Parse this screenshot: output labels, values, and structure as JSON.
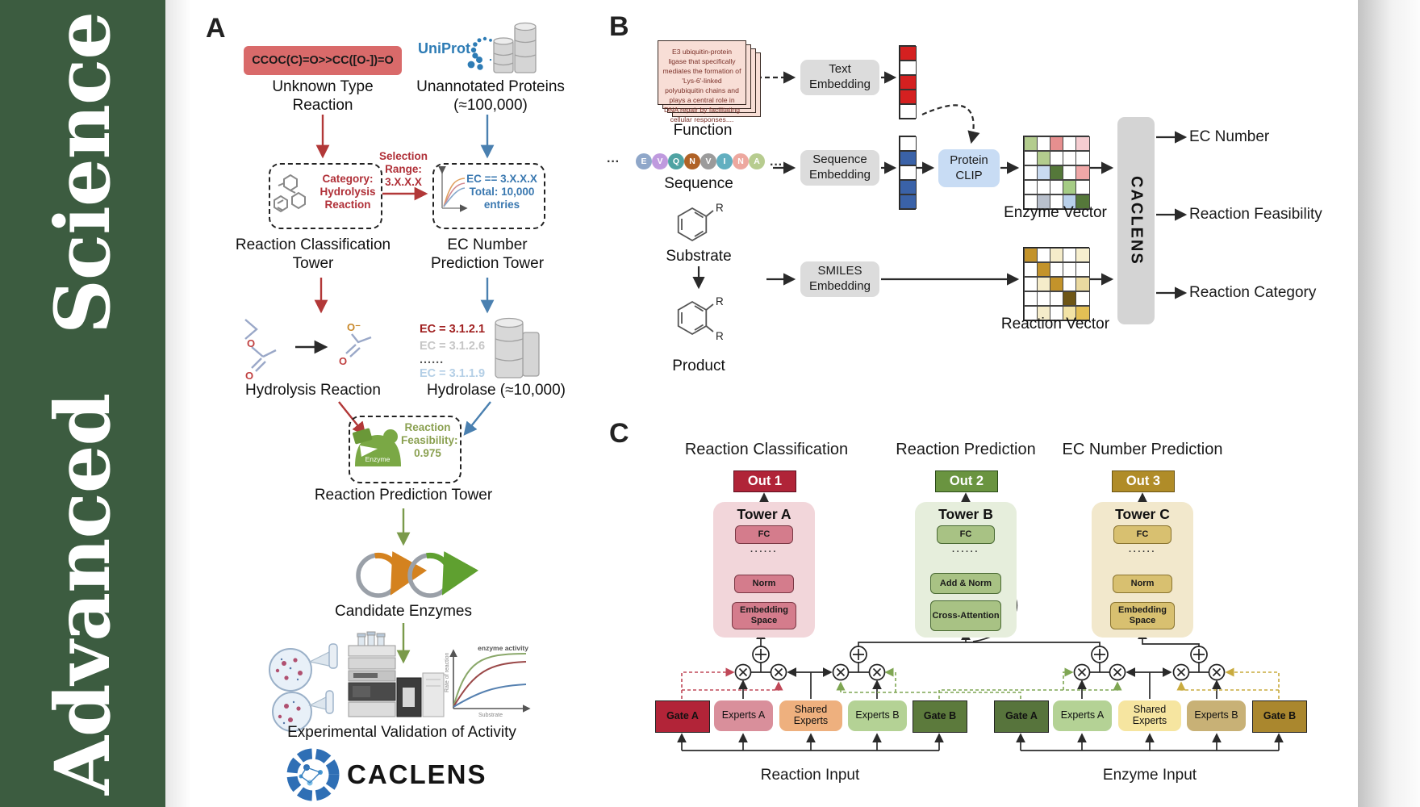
{
  "journal": {
    "name": "Advanced Science"
  },
  "colors": {
    "sidebar_green": "#3c5c40",
    "arrow_red": "#b23838",
    "arrow_blue": "#4a80b0",
    "arrow_olive": "#7a9a4a",
    "smiles_box": "#d96a6a",
    "uniprot_blue": "#2e7cb5",
    "clip_blue": "#c8dcf4",
    "embedding_gray": "#dcdcdc",
    "caclens_bar_gray": "#d4d4d4"
  },
  "panelA": {
    "label": "A",
    "smiles": "CCOC(C)=O>>CC([O-])=O",
    "unknown_reaction": "Unknown Type Reaction",
    "uniprot": "UniProt",
    "unannotated": "Unannotated Proteins (≈100,000)",
    "selection_range": "Selection Range: 3.X.X.X",
    "category_box": "Category: Hydrolysis Reaction",
    "ec_box": "EC == 3.X.X.X Total: 10,000 entries",
    "tower_classification": "Reaction Classification Tower",
    "tower_ec": "EC Number Prediction Tower",
    "hydrolysis": "Hydrolysis Reaction",
    "hydrolase": "Hydrolase (≈10,000)",
    "ec_list": [
      {
        "text": "EC = 3.1.2.1",
        "color": "#a02020"
      },
      {
        "text": "EC = 3.1.2.6",
        "color": "#c6c6c6"
      },
      {
        "text": "......",
        "color": "#555555"
      },
      {
        "text": "EC = 3.1.1.9",
        "color": "#b4cfe6"
      }
    ],
    "enzyme": "Enzyme",
    "feasibility": "Reaction Feasibility: 0.975",
    "tower_prediction": "Reaction Prediction Tower",
    "candidates": "Candidate Enzymes",
    "activity_chart": {
      "curve_label": "enzyme activity",
      "ylabel": "Rate of reaction",
      "xlabel": "Substrate"
    },
    "validation": "Experimental Validation of Activity",
    "logo": "CACLENS",
    "atom_o": "O",
    "atom_o_minus": "O⁻"
  },
  "panelB": {
    "label": "B",
    "function_text": "E3 ubiquitin-protein ligase that specifically mediates the formation of 'Lys-6'-linked polyubiquitin chains and plays a central role in DNA repair by facilitating cellular responses....",
    "function": "Function",
    "ellipsis": "···",
    "residues": [
      {
        "l": "E",
        "c": "#8fa7c9"
      },
      {
        "l": "V",
        "c": "#bf9ade"
      },
      {
        "l": "Q",
        "c": "#4fa3a3"
      },
      {
        "l": "N",
        "c": "#b06226"
      },
      {
        "l": "V",
        "c": "#9b9b9b"
      },
      {
        "l": "I",
        "c": "#62afc0"
      },
      {
        "l": "N",
        "c": "#eda89f"
      },
      {
        "l": "A",
        "c": "#b7cc8f"
      }
    ],
    "sequence": "Sequence",
    "substrate": "Substrate",
    "product": "Product",
    "r_group": "R",
    "text_embedding": "Text Embedding",
    "sequence_embedding": "Sequence Embedding",
    "smiles_embedding": "SMILES Embedding",
    "protein_clip": "Protein CLIP",
    "enzyme_vector": "Enzyme Vector",
    "reaction_vector": "Reaction Vector",
    "caclens": "CACLENS",
    "outputs": [
      "EC Number",
      "Reaction Feasibility",
      "Reaction Category"
    ],
    "text_vec": [
      "#d42020",
      "#ffffff",
      "#d42020",
      "#d42020",
      "#ffffff"
    ],
    "seq_vec": [
      "#ffffff",
      "#3a62a8",
      "#ffffff",
      "#3a62a8",
      "#3a62a8"
    ],
    "enzyme_grid": [
      "#b3cc8e",
      "#ffffff",
      "#e68f8f",
      "#ffffff",
      "#f5cdd1",
      "#ffffff",
      "#b3cc8e",
      "#ffffff",
      "#ffffff",
      "#ffffff",
      "#ffffff",
      "#c9daf0",
      "#55783a",
      "#ffffff",
      "#f0a8a8",
      "#ffffff",
      "#ffffff",
      "#ffffff",
      "#a5cc85",
      "#ffffff",
      "#ffffff",
      "#b9c0cc",
      "#ffffff",
      "#b9d0ea",
      "#55783a"
    ],
    "reaction_grid": [
      "#c3932b",
      "#ffffff",
      "#f5ecca",
      "#ffffff",
      "#f7efce",
      "#ffffff",
      "#c3932b",
      "#ffffff",
      "#ffffff",
      "#ffffff",
      "#ffffff",
      "#f5ecca",
      "#c3932b",
      "#ffffff",
      "#ead9a0",
      "#ffffff",
      "#ffffff",
      "#ffffff",
      "#6e5616",
      "#ffffff",
      "#ffffff",
      "#f5ecca",
      "#ffffff",
      "#f2e3a6",
      "#e3bf55"
    ]
  },
  "panelC": {
    "label": "C",
    "headers": [
      "Reaction Classification",
      "Reaction Prediction",
      "EC Number Prediction"
    ],
    "outs": [
      "Out 1",
      "Out 2",
      "Out 3"
    ],
    "towers": [
      {
        "title": "Tower A",
        "fc": "FC",
        "dots": "······",
        "mid": "Norm",
        "bottom": "Embedding Space"
      },
      {
        "title": "Tower B",
        "fc": "FC",
        "dots": "······",
        "mid": "Add & Norm",
        "bottom": "Cross-Attention"
      },
      {
        "title": "Tower C",
        "fc": "FC",
        "dots": "······",
        "mid": "Norm",
        "bottom": "Embedding Space"
      }
    ],
    "reaction_group": {
      "gate_a": "Gate A",
      "experts_a": "Experts A",
      "shared": "Shared Experts",
      "experts_b": "Experts B",
      "gate_b": "Gate B",
      "input": "Reaction Input"
    },
    "enzyme_group": {
      "gate_a": "Gate A",
      "experts_a": "Experts A",
      "shared": "Shared Experts",
      "experts_b": "Experts B",
      "gate_b": "Gate B",
      "input": "Enzyme Input"
    },
    "reaction_group_colors": {
      "gate_a": "#b22438",
      "experts_a": "#d98f9b",
      "shared": "#eeb07e",
      "experts_b": "#b4d295",
      "gate_b": "#5c7a3c"
    },
    "enzyme_group_colors": {
      "gate_a": "#57743c",
      "experts_a": "#b4d295",
      "shared": "#f6e5a0",
      "experts_b": "#c8b176",
      "gate_b": "#aa872e"
    }
  }
}
